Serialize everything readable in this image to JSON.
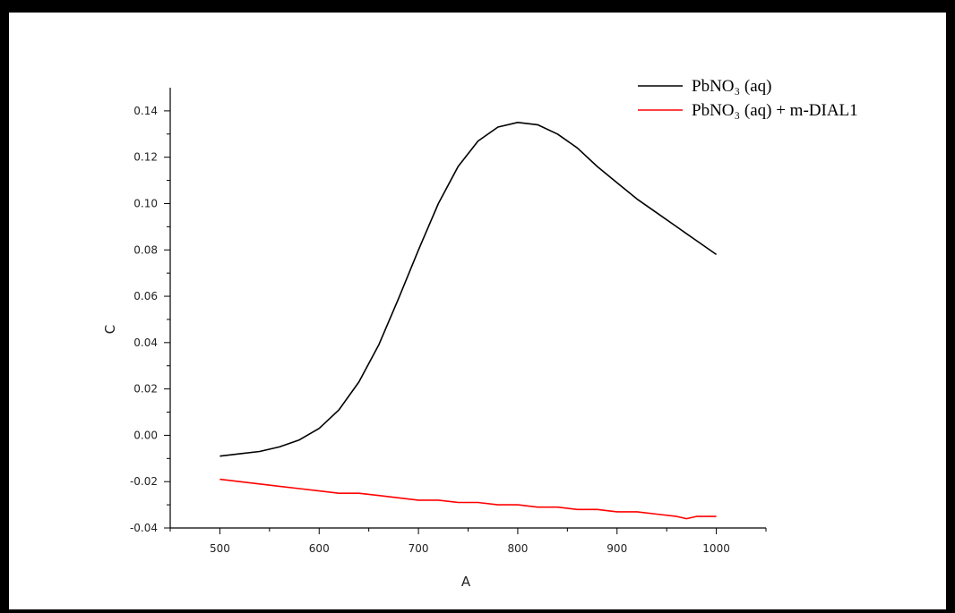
{
  "chart_data": {
    "type": "line",
    "title": "",
    "xlabel": "A",
    "ylabel": "C",
    "xlim": [
      450,
      1050
    ],
    "ylim": [
      -0.04,
      0.15
    ],
    "x_ticks": [
      "500",
      "600",
      "700",
      "800",
      "900",
      "1000"
    ],
    "x_tick_values": [
      500,
      600,
      700,
      800,
      900,
      1000
    ],
    "y_ticks": [
      "-0.04",
      "-0.02",
      "0.00",
      "0.02",
      "0.04",
      "0.06",
      "0.08",
      "0.10",
      "0.12",
      "0.14"
    ],
    "y_tick_values": [
      -0.04,
      -0.02,
      0.0,
      0.02,
      0.04,
      0.06,
      0.08,
      0.1,
      0.12,
      0.14
    ],
    "legend_position": "top-right",
    "grid": false,
    "series": [
      {
        "name": "PbNO₃ (aq)",
        "color": "#000000",
        "x": [
          500,
          520,
          540,
          560,
          580,
          600,
          620,
          640,
          660,
          680,
          700,
          720,
          740,
          760,
          780,
          800,
          820,
          840,
          860,
          880,
          900,
          920,
          940,
          960,
          980,
          1000
        ],
        "y": [
          -0.009,
          -0.008,
          -0.007,
          -0.005,
          -0.002,
          0.003,
          0.011,
          0.023,
          0.039,
          0.059,
          0.08,
          0.1,
          0.116,
          0.127,
          0.133,
          0.135,
          0.134,
          0.13,
          0.124,
          0.116,
          0.109,
          0.102,
          0.096,
          0.09,
          0.084,
          0.078
        ]
      },
      {
        "name": "PbNO₃ (aq) + m-DIAL1",
        "color": "#ff0000",
        "x": [
          500,
          520,
          540,
          560,
          580,
          600,
          620,
          640,
          660,
          680,
          700,
          720,
          740,
          760,
          780,
          800,
          820,
          840,
          860,
          880,
          900,
          920,
          940,
          960,
          970,
          980,
          1000
        ],
        "y": [
          -0.019,
          -0.02,
          -0.021,
          -0.022,
          -0.023,
          -0.024,
          -0.025,
          -0.025,
          -0.026,
          -0.027,
          -0.028,
          -0.028,
          -0.029,
          -0.029,
          -0.03,
          -0.03,
          -0.031,
          -0.031,
          -0.032,
          -0.032,
          -0.033,
          -0.033,
          -0.034,
          -0.035,
          -0.036,
          -0.035,
          -0.035
        ]
      }
    ]
  }
}
